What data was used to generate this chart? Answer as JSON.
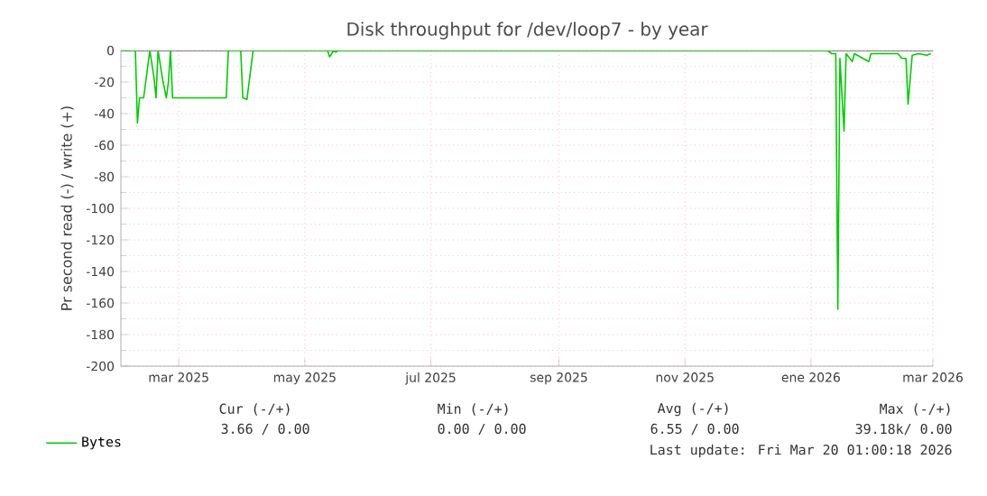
{
  "chart_data": {
    "type": "line",
    "title": "Disk throughput for /dev/loop7 - by year",
    "ylabel": "Pr second read (-) / write (+)",
    "x": [
      "2025-02-01",
      "2025-02-08",
      "2025-02-09",
      "2025-02-10",
      "2025-02-12",
      "2025-02-15",
      "2025-02-17",
      "2025-02-18",
      "2025-02-19",
      "2025-02-21",
      "2025-02-23",
      "2025-02-24",
      "2025-02-25",
      "2025-02-26",
      "2025-02-27",
      "2025-03-24",
      "2025-03-25",
      "2025-03-31",
      "2025-04-01",
      "2025-04-03",
      "2025-04-06",
      "2025-05-12",
      "2025-05-13",
      "2025-05-15",
      "2025-05-16",
      "2025-05-17",
      "2026-01-09",
      "2026-01-11",
      "2026-01-13",
      "2026-01-14",
      "2026-01-15",
      "2026-01-17",
      "2026-01-18",
      "2026-01-21",
      "2026-01-22",
      "2026-01-29",
      "2026-01-30",
      "2026-02-12",
      "2026-02-14",
      "2026-02-16",
      "2026-02-17",
      "2026-02-19",
      "2026-02-22",
      "2026-02-26",
      "2026-02-28"
    ],
    "series": [
      {
        "name": "Bytes",
        "color": "#00cc00",
        "values": [
          0,
          0,
          -46,
          -30,
          -30,
          0,
          -17,
          -30,
          0,
          -17,
          -30,
          -20,
          0,
          -30,
          -30,
          -30,
          0,
          0,
          -30,
          -31,
          0,
          0,
          -4,
          0,
          -1,
          0,
          0,
          -2,
          -2,
          -164,
          -5,
          -51,
          -2,
          -7,
          -2,
          -7,
          -2,
          -2,
          -5,
          -5,
          -34,
          -3,
          -2,
          -3,
          -2
        ]
      }
    ],
    "xlim": [
      "2025-02-01",
      "2026-03-01"
    ],
    "xticks": [
      {
        "value": "2025-03-01",
        "label": "mar 2025"
      },
      {
        "value": "2025-05-01",
        "label": "may 2025"
      },
      {
        "value": "2025-07-01",
        "label": "jul 2025"
      },
      {
        "value": "2025-09-01",
        "label": "sep 2025"
      },
      {
        "value": "2025-11-01",
        "label": "nov 2025"
      },
      {
        "value": "2026-01-01",
        "label": "ene 2026"
      },
      {
        "value": "2026-03-01",
        "label": "mar 2026"
      }
    ],
    "ylim": [
      -200,
      0
    ],
    "yticks": [
      -200,
      -180,
      -160,
      -140,
      -120,
      -100,
      -80,
      -60,
      -40,
      -20,
      0
    ],
    "grid": true,
    "legend": "bottom left",
    "annotations": [
      "Cur (-/+)",
      "Min (-/+)",
      "Avg (-/+)",
      "Max (-/+)",
      "3.66 /   0.00",
      "0.00 /   0.00",
      "6.55 /   0.00",
      "39.18k/   0.00",
      "Last update: Fri Mar 20 01:00:18 2026"
    ]
  }
}
